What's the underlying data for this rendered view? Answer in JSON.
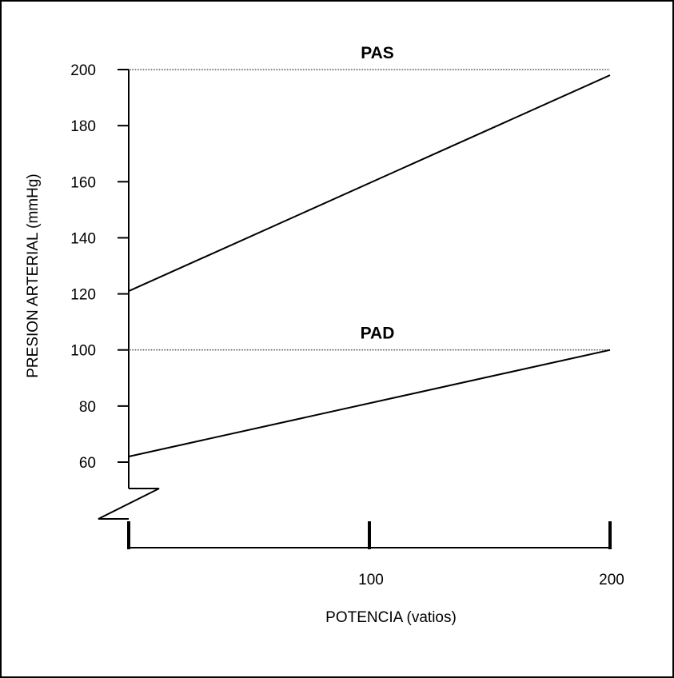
{
  "chart_data": {
    "type": "line",
    "title": "",
    "xlabel": "POTENCIA (vatios)",
    "ylabel": "PRESION ARTERIAL (mmHg)",
    "xlim": [
      0,
      200
    ],
    "ylim": [
      60,
      200
    ],
    "y_axis_break": true,
    "x_ticks": [
      0,
      100,
      200
    ],
    "x_tick_labels": [
      "",
      "100",
      "200"
    ],
    "y_ticks": [
      60,
      80,
      100,
      120,
      140,
      160,
      180,
      200
    ],
    "y_tick_labels": [
      "60",
      "80",
      "100",
      "120",
      "140",
      "160",
      "180",
      "200"
    ],
    "grid": false,
    "legend": "none",
    "series": [
      {
        "name": "PAS",
        "x": [
          0,
          200
        ],
        "y": [
          121,
          198
        ],
        "reference_y": 200
      },
      {
        "name": "PAD",
        "x": [
          0,
          200
        ],
        "y": [
          62,
          100
        ],
        "reference_y": 100
      }
    ],
    "colors": {
      "line": "#000000",
      "reference": "#000000",
      "frame": "#000000"
    }
  }
}
